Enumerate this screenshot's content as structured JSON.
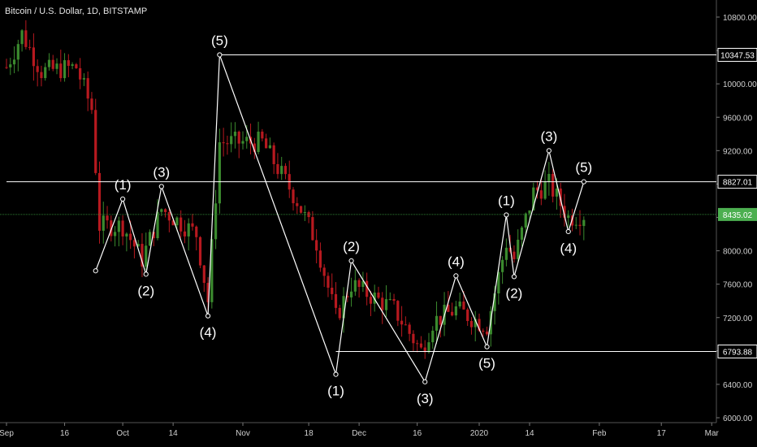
{
  "chart_data": {
    "type": "candlestick",
    "title": "Bitcoin / U.S. Dollar, 1D, BITSTAMP",
    "ylim": [
      6000,
      11000
    ],
    "y_ticks": [
      "10800.00",
      "10400.00",
      "10000.00",
      "9600.00",
      "9200.00",
      "8800.00",
      "8400.00",
      "8000.00",
      "7600.00",
      "7200.00",
      "6800.00",
      "6400.00",
      "6000.00"
    ],
    "x_ticks": [
      "Sep",
      "16",
      "Oct",
      "14",
      "Nov",
      "18",
      "Dec",
      "16",
      "2020",
      "14",
      "Feb",
      "17",
      "Mar"
    ],
    "level_lines": [
      {
        "label": "10347.53",
        "value": 10347.53
      },
      {
        "label": "8827.01",
        "value": 8827.01
      },
      {
        "label": "6793.88",
        "value": 6793.88
      }
    ],
    "current_price": {
      "label": "8435.02",
      "value": 8435.02
    },
    "colors": {
      "up": "#3b8a2e",
      "down": "#b7191f",
      "wave": "#ffffff",
      "current": "#4caf50"
    },
    "waves": [
      {
        "label": "(1)",
        "date": "2019-10-01",
        "value": 8620
      },
      {
        "label": "(2)",
        "date": "2019-10-07",
        "value": 7720
      },
      {
        "label": "(3)",
        "date": "2019-10-11",
        "value": 8770
      },
      {
        "label": "(4)",
        "date": "2019-10-23",
        "value": 7220
      },
      {
        "label": "(5)",
        "date": "2019-10-26",
        "value": 10347.53
      },
      {
        "label": "(1)",
        "date": "2019-11-25",
        "value": 6520
      },
      {
        "label": "(2)",
        "date": "2019-11-29",
        "value": 7880
      },
      {
        "label": "(3)",
        "date": "2019-12-18",
        "value": 6430
      },
      {
        "label": "(4)",
        "date": "2019-12-26",
        "value": 7700
      },
      {
        "label": "(5)",
        "date": "2020-01-03",
        "value": 6850
      },
      {
        "label": "(1)",
        "date": "2020-01-08",
        "value": 8430
      },
      {
        "label": "(2)",
        "date": "2020-01-10",
        "value": 7690
      },
      {
        "label": "(3)",
        "date": "2020-01-19",
        "value": 9200
      },
      {
        "label": "(4)",
        "date": "2020-01-24",
        "value": 8230
      },
      {
        "label": "(5)",
        "date": "2020-01-28",
        "value": 8827.01
      }
    ],
    "wave_start": {
      "date": "2019-09-24",
      "value": 7760
    },
    "candles": []
  }
}
